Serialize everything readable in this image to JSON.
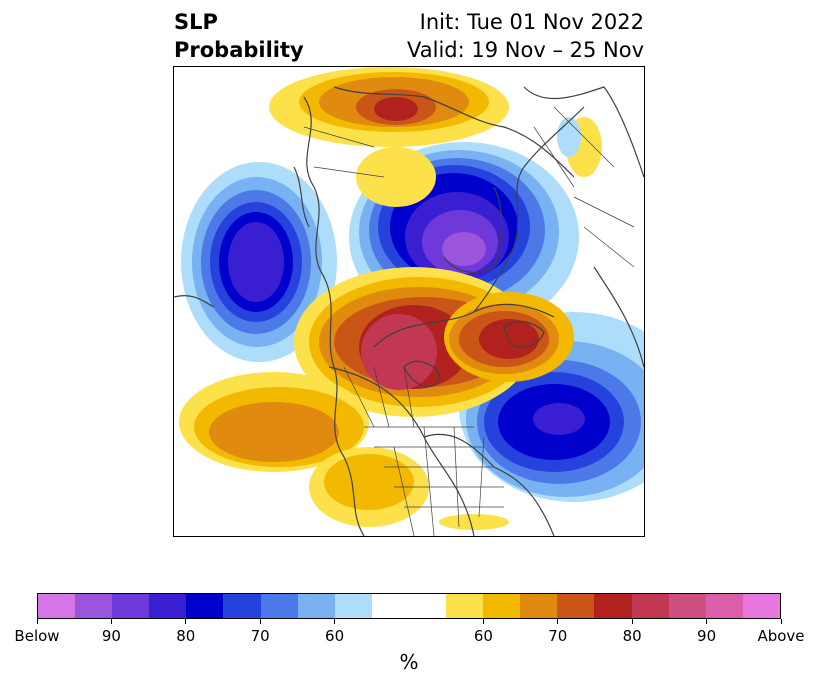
{
  "title": {
    "left_line1": "SLP",
    "left_line2": "Probability",
    "right_line1": "Init: Tue 01 Nov 2022",
    "right_line2": "Valid: 19 Nov – 25 Nov"
  },
  "colorbar": {
    "colors": [
      "#d575e8",
      "#9b55dd",
      "#6e39d8",
      "#3a1fd2",
      "#0000cc",
      "#2642dd",
      "#4d78e8",
      "#78b2f2",
      "#aedcfb",
      "#ffffff",
      "#ffffff",
      "#fde14a",
      "#f3b800",
      "#e08a10",
      "#c95517",
      "#b1221f",
      "#c23752",
      "#cd4f82",
      "#dc5eaa",
      "#e878dd"
    ],
    "tick_labels": [
      "Below",
      "90",
      "80",
      "70",
      "60",
      "60",
      "70",
      "80",
      "90",
      "Above"
    ],
    "tick_index": [
      0,
      2,
      4,
      6,
      8,
      12,
      14,
      16,
      18,
      20
    ],
    "unit_label": "%"
  },
  "anomalies": [
    {
      "name": "siberia-low",
      "type": "below",
      "level": "90"
    },
    {
      "name": "north-pacific-low",
      "type": "below",
      "level": "80"
    },
    {
      "name": "north-atlantic-low",
      "type": "below",
      "level": "80"
    },
    {
      "name": "alaska-canada-high",
      "type": "above",
      "level": "90"
    },
    {
      "name": "greenland-high",
      "type": "above",
      "level": "80"
    },
    {
      "name": "europe-high",
      "type": "above",
      "level": "80"
    },
    {
      "name": "east-pacific-high",
      "type": "above",
      "level": "70"
    }
  ]
}
